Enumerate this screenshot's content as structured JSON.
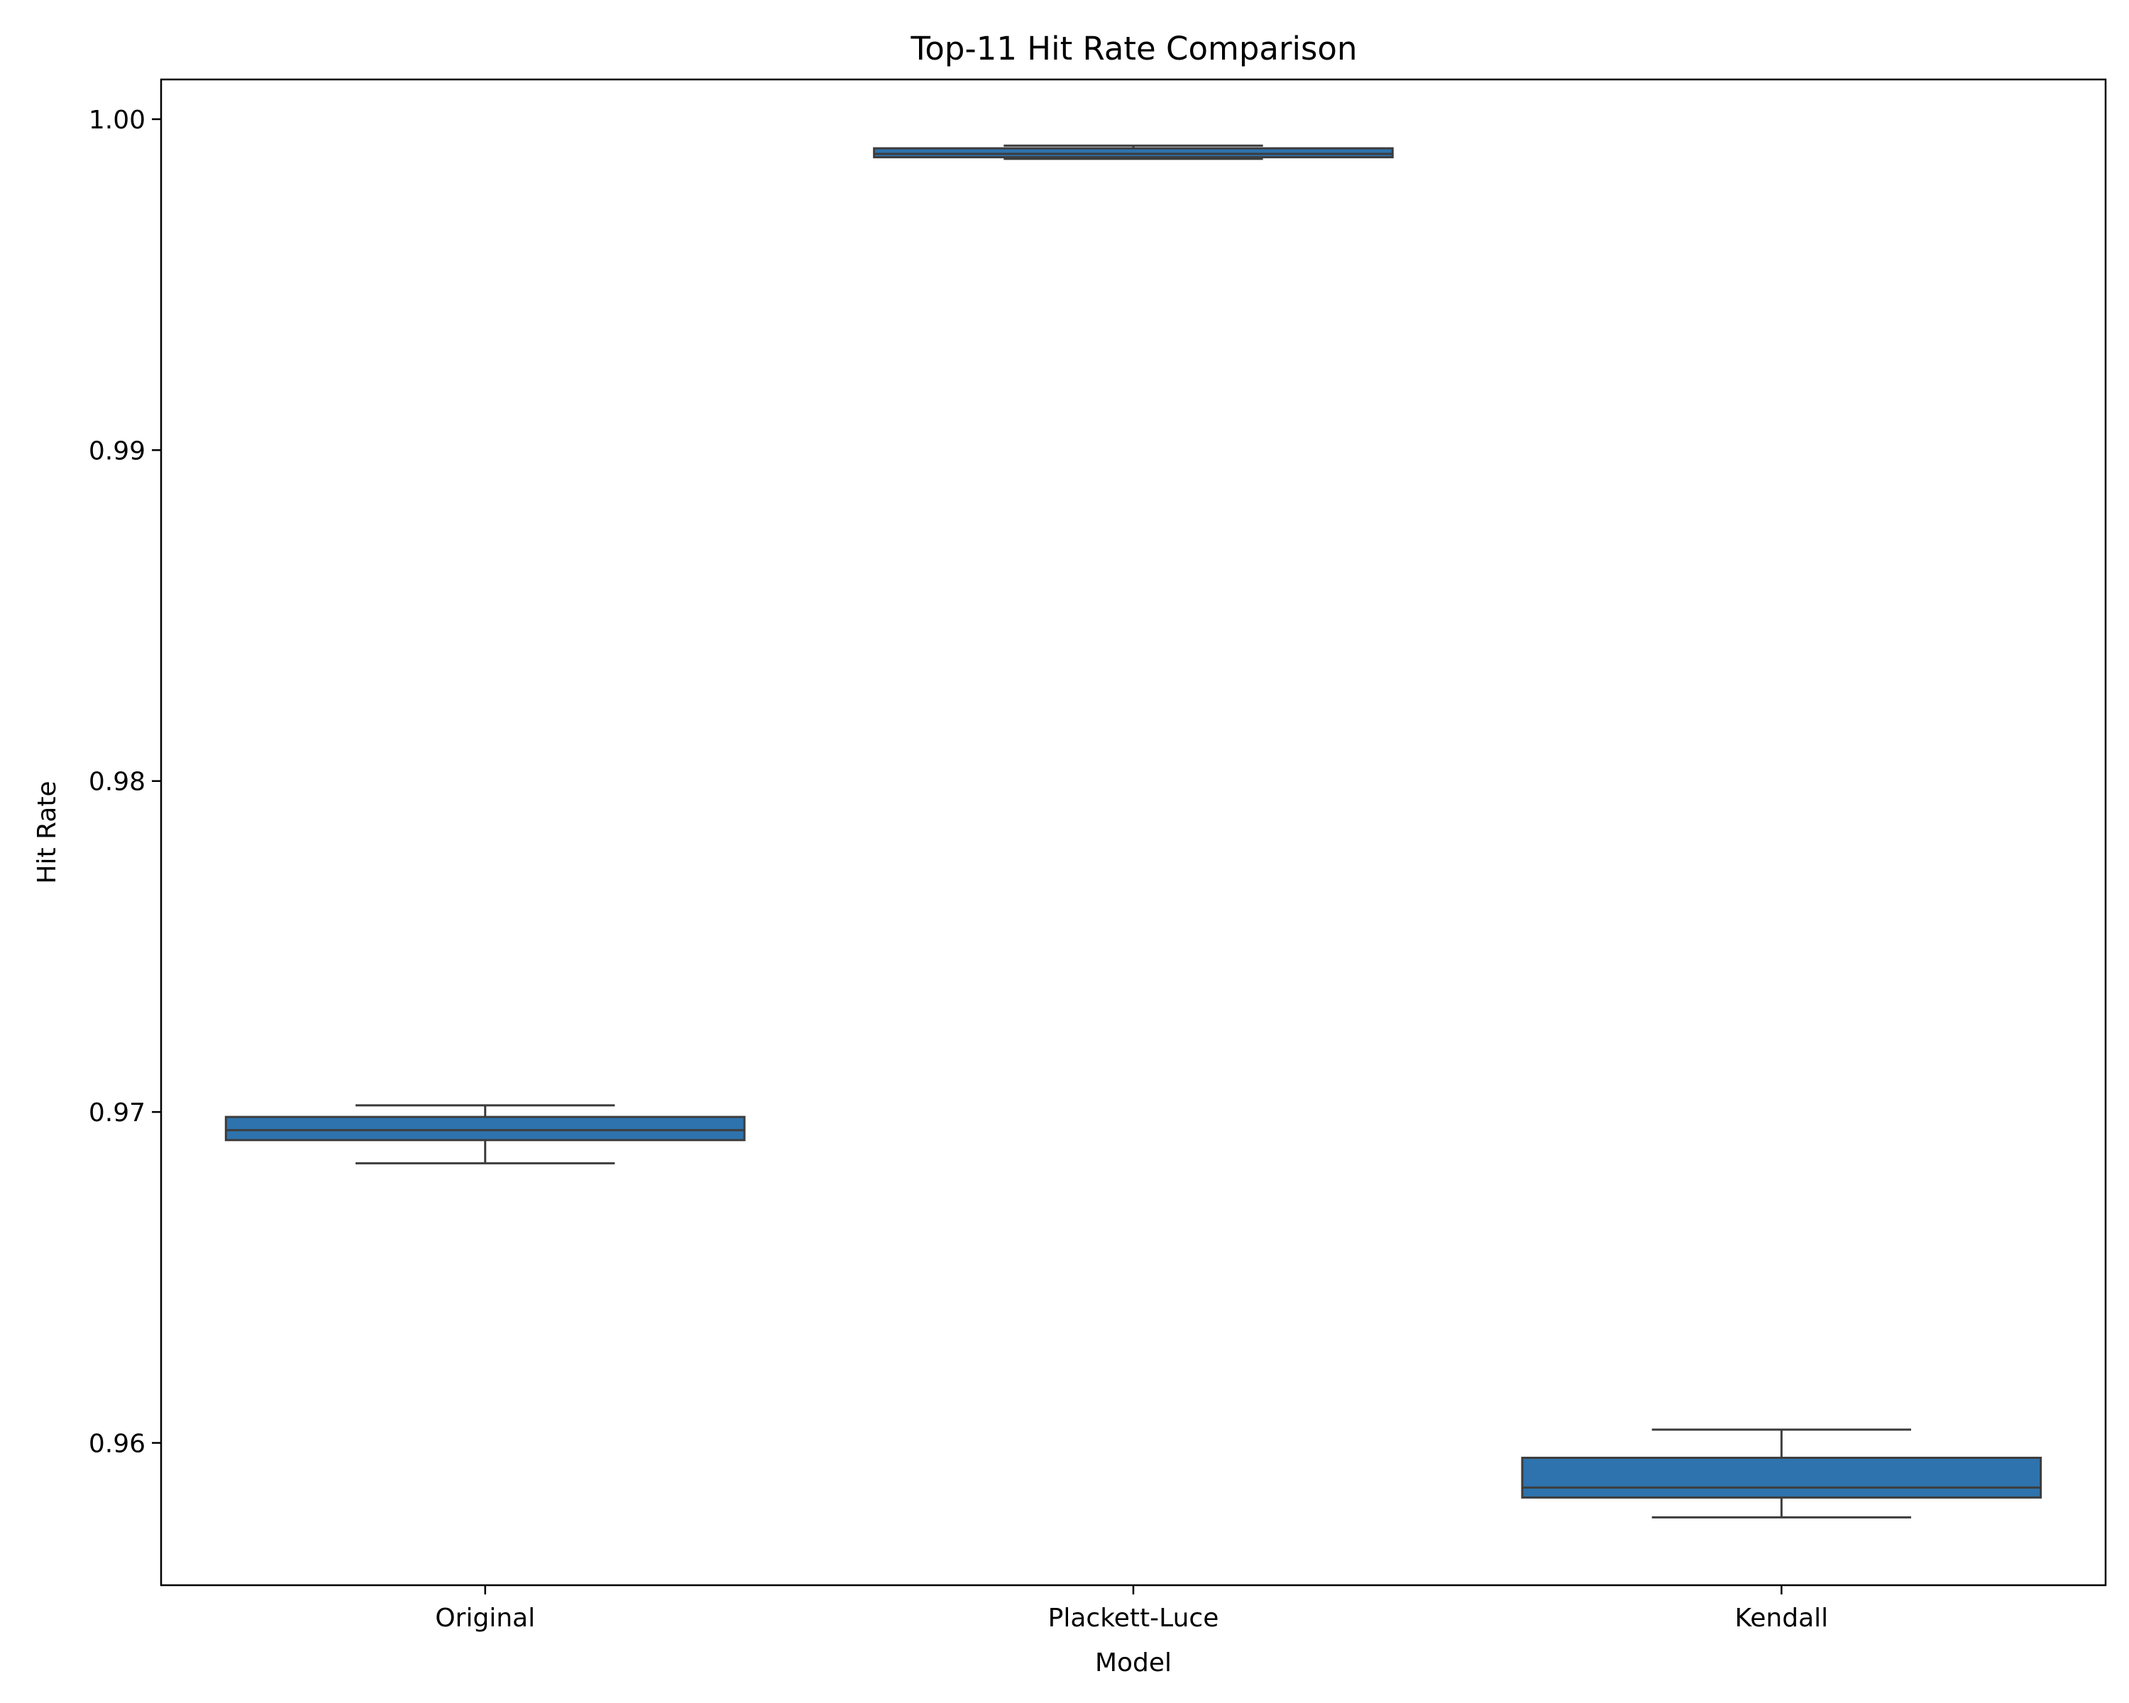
{
  "chart_data": {
    "type": "box",
    "title": "Top-11 Hit Rate Comparison",
    "xlabel": "Model",
    "ylabel": "Hit Rate",
    "categories": [
      "Original",
      "Plackett-Luce",
      "Kendall"
    ],
    "ylim": [
      0.9557,
      1.0012
    ],
    "yticks": [
      0.96,
      0.97,
      0.98,
      0.99,
      1.0
    ],
    "ytick_labels": [
      "0.96",
      "0.97",
      "0.98",
      "0.99",
      "1.00"
    ],
    "grid": false,
    "box_color": "#2e73ad",
    "edge_color": "#3d3d3d",
    "boxes": [
      {
        "category": "Original",
        "whisker_low": 0.96845,
        "q1": 0.96915,
        "median": 0.96945,
        "q3": 0.96985,
        "whisker_high": 0.9702
      },
      {
        "category": "Plackett-Luce",
        "whisker_low": 0.9988,
        "q1": 0.99885,
        "median": 0.99895,
        "q3": 0.99912,
        "whisker_high": 0.9992
      },
      {
        "category": "Kendall",
        "whisker_low": 0.95775,
        "q1": 0.95835,
        "median": 0.95865,
        "q3": 0.95955,
        "whisker_high": 0.9604
      }
    ]
  }
}
